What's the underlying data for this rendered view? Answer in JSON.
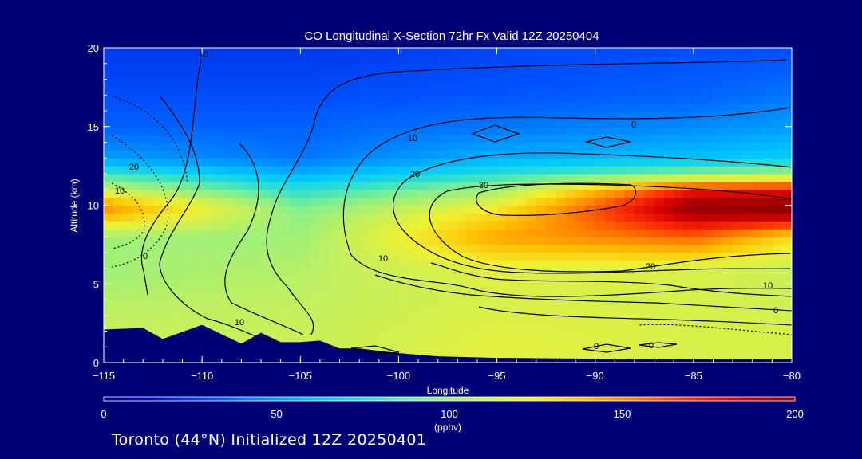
{
  "chart_data": {
    "type": "heatmap",
    "title": "CO Longitudinal X-Section 72hr  Fx Valid 12Z 20250404",
    "xlabel": "Longitude",
    "ylabel": "Altitude (km)",
    "xlim": [
      -115,
      -80
    ],
    "ylim": [
      0,
      20
    ],
    "x_ticks": [
      -115,
      -110,
      -105,
      -100,
      -95,
      -90,
      -85,
      -80
    ],
    "x_tick_labels": [
      "−115",
      "−110",
      "−105",
      "−100",
      "−95",
      "−90",
      "−85",
      "−80"
    ],
    "y_ticks": [
      0,
      5,
      10,
      15,
      20
    ],
    "y_tick_labels": [
      "0",
      "5",
      "10",
      "15",
      "20"
    ],
    "colorbar": {
      "min": 0,
      "max": 200,
      "ticks": [
        0,
        50,
        100,
        150,
        200
      ],
      "tick_labels": [
        "0",
        "50",
        "100",
        "150",
        "200"
      ],
      "unit": "(ppbv)"
    },
    "co_profile_ppbv": {
      "altitudes_km": [
        0,
        2,
        4,
        6,
        8,
        9.5,
        10,
        11,
        12,
        13,
        15,
        17,
        20
      ],
      "lon_-115": [
        110,
        110,
        105,
        100,
        100,
        145,
        150,
        110,
        80,
        50,
        35,
        30,
        25
      ],
      "lon_-105": [
        110,
        110,
        108,
        105,
        100,
        95,
        90,
        75,
        55,
        40,
        35,
        30,
        25
      ],
      "lon_-95": [
        120,
        118,
        115,
        120,
        145,
        130,
        120,
        100,
        75,
        55,
        40,
        32,
        28
      ],
      "lon_-85": [
        115,
        115,
        115,
        115,
        160,
        195,
        200,
        175,
        95,
        60,
        45,
        35,
        30
      ],
      "lon_-80": [
        115,
        115,
        112,
        110,
        130,
        200,
        200,
        180,
        100,
        65,
        50,
        40,
        30
      ]
    },
    "contour_labels": [
      "10",
      "20",
      "30",
      "0",
      "10",
      "20",
      "10",
      "0",
      "0",
      "0",
      "10",
      "20",
      "10",
      "0",
      "10"
    ],
    "terrain_km": {
      "lon": [
        -115,
        -113,
        -112,
        -110,
        -109,
        -108,
        -107,
        -106,
        -105,
        -104,
        -103,
        -102,
        -100,
        -98,
        -95,
        -90,
        -85,
        -80
      ],
      "alt": [
        2.1,
        2.2,
        1.5,
        2.4,
        1.8,
        1.2,
        1.9,
        1.3,
        1.3,
        1.4,
        0.9,
        0.9,
        0.6,
        0.4,
        0.3,
        0.25,
        0.2,
        0.2
      ]
    },
    "colors": [
      "#000080",
      "#0010c8",
      "#0050ff",
      "#0090ff",
      "#00c8ff",
      "#30e0d0",
      "#80f090",
      "#c0f060",
      "#f0f030",
      "#ffc000",
      "#ff8000",
      "#ff3000",
      "#d80000",
      "#900000"
    ]
  },
  "footer": {
    "text": "Toronto (44°N) Initialized 12Z 20250401"
  }
}
